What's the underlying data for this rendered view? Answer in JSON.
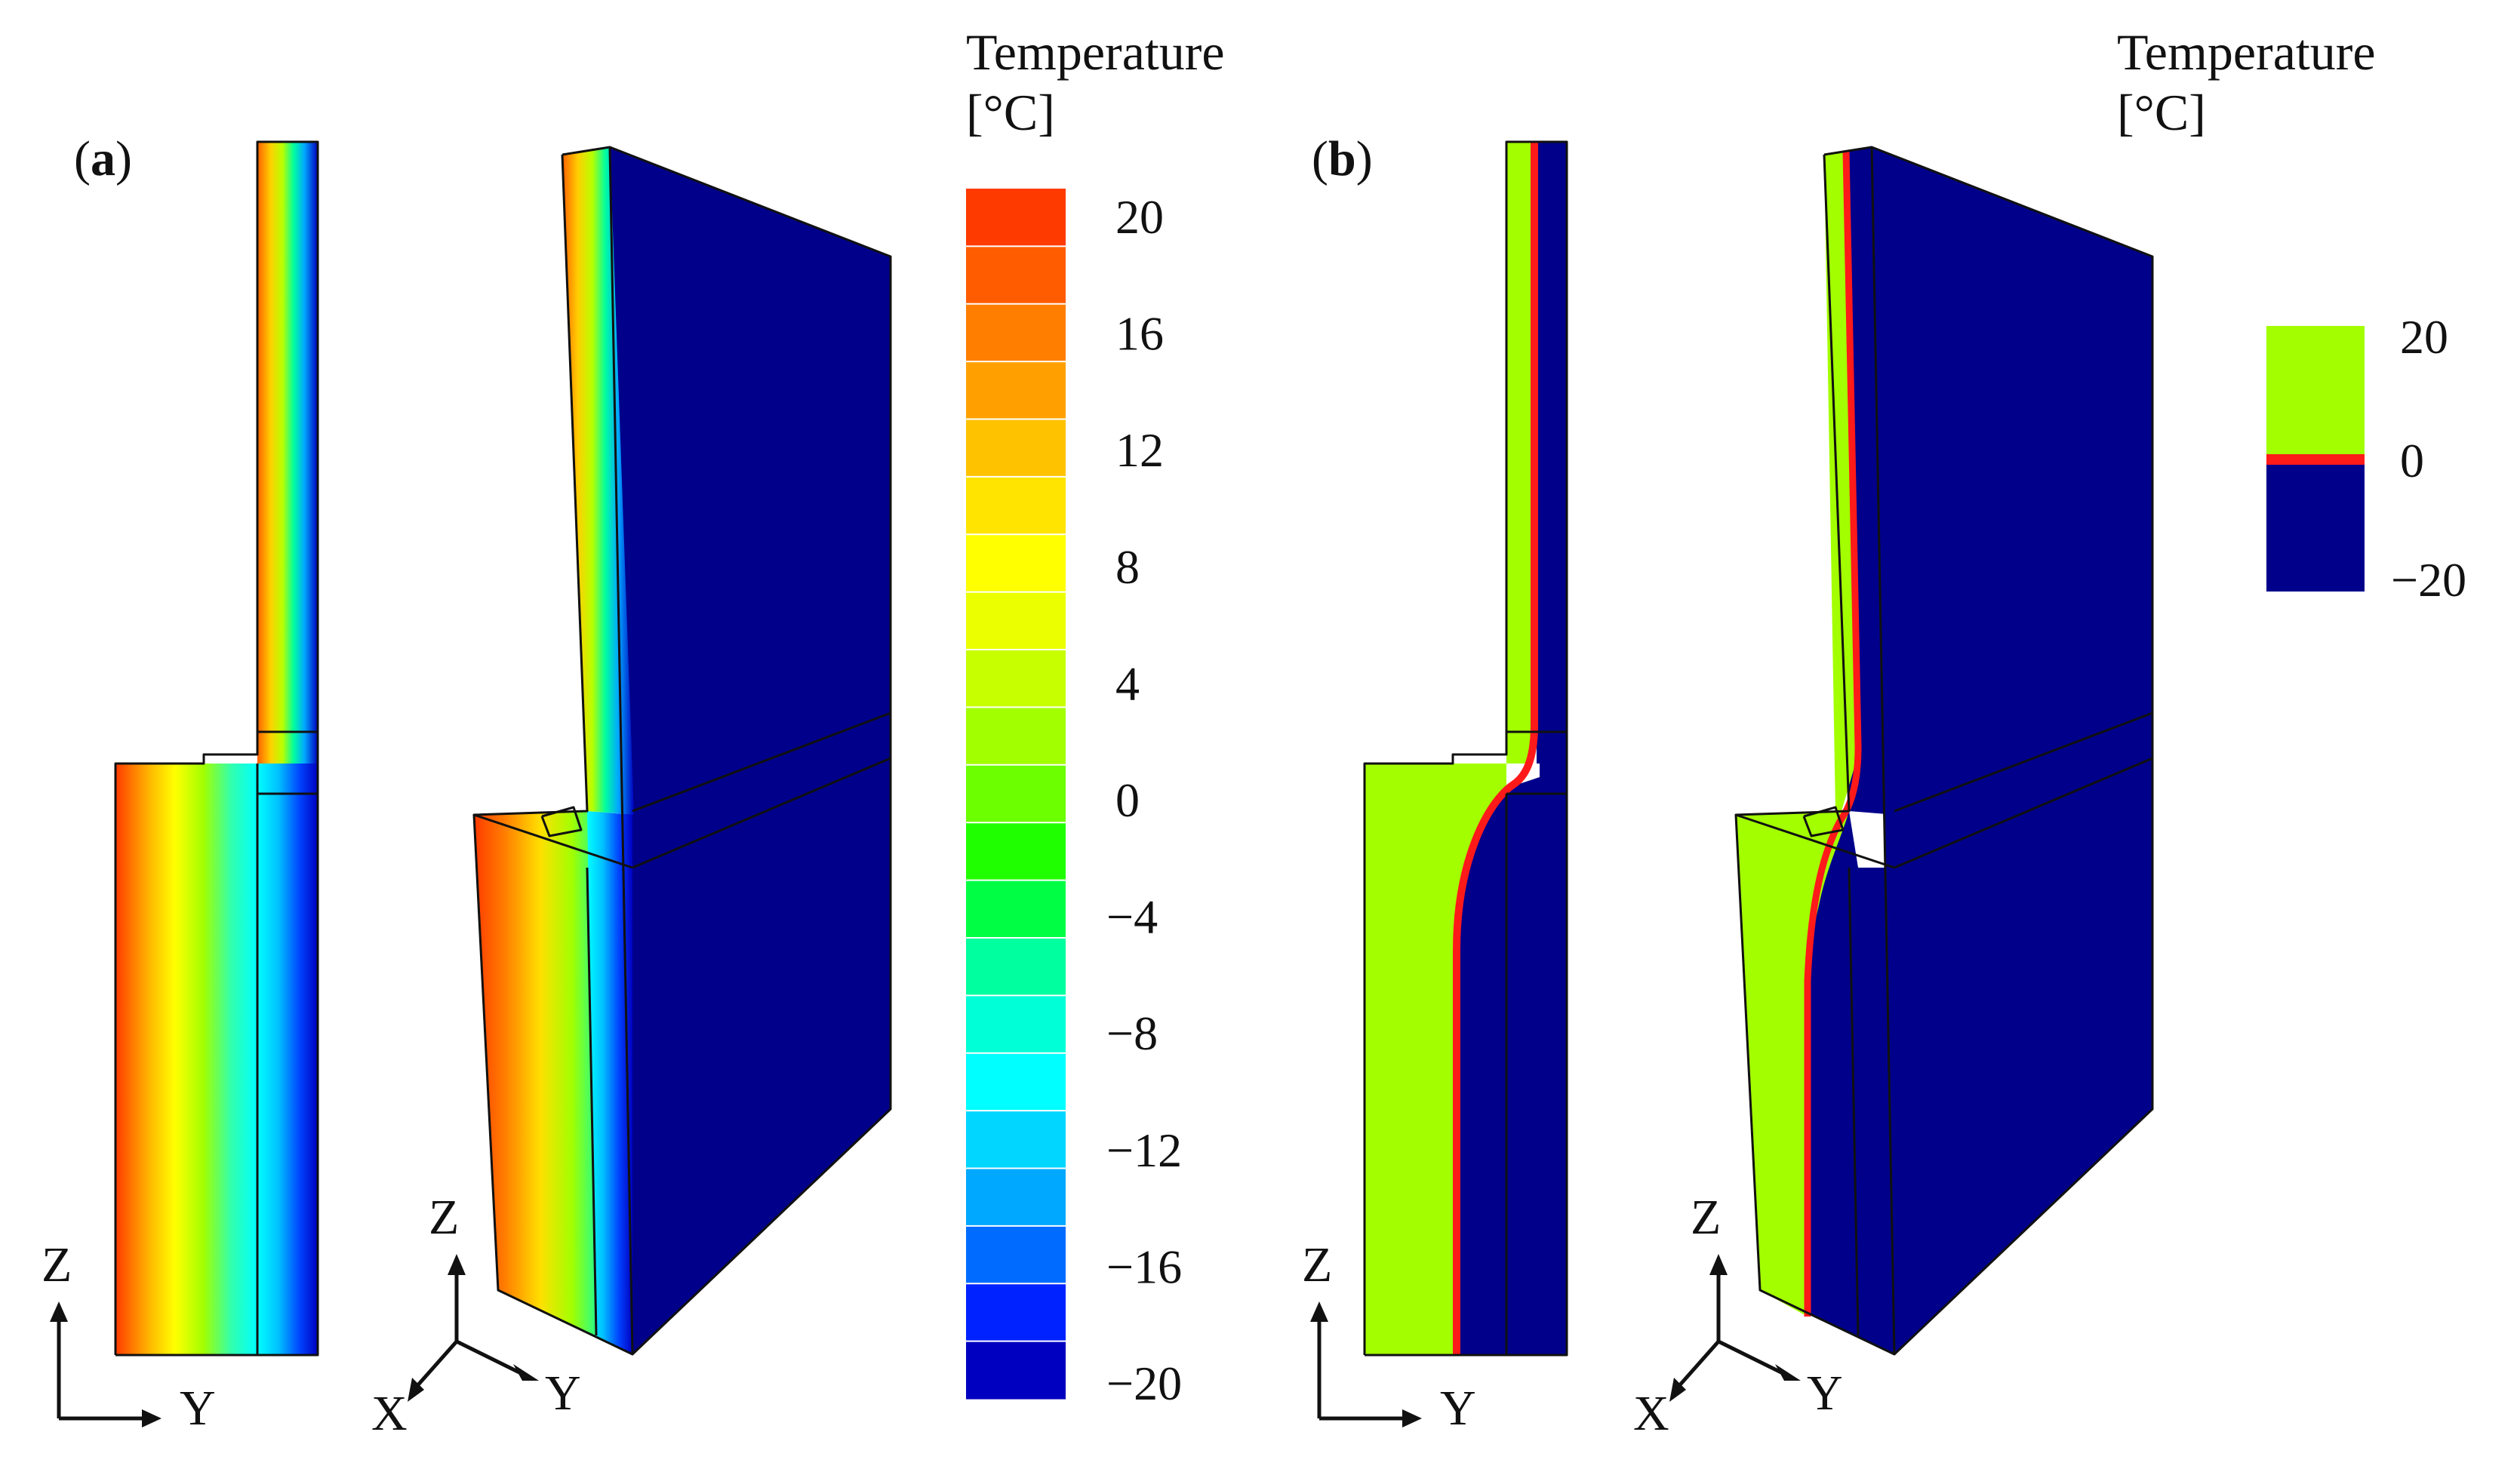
{
  "panel_a": {
    "label_open": "(",
    "label_letter": "a",
    "label_close": ")",
    "legend": {
      "title_line1": "Temperature",
      "title_line2": "[°C]",
      "ticks": [
        "20",
        "16",
        "12",
        "8",
        "4",
        "0",
        "−4",
        "−8",
        "−12",
        "−16",
        "−20"
      ],
      "colors": [
        "#ff3a00",
        "#ff5c00",
        "#ff7e00",
        "#ffa000",
        "#ffc200",
        "#ffe400",
        "#ffff00",
        "#ecff00",
        "#c8ff00",
        "#a2ff00",
        "#6cff00",
        "#20ff00",
        "#00ff44",
        "#00ff9e",
        "#00ffd6",
        "#00ffff",
        "#00d6ff",
        "#00a8ff",
        "#006cff",
        "#0022ff",
        "#0000c0"
      ]
    },
    "axes_2d": {
      "vertical": "Z",
      "horizontal": "Y"
    },
    "axes_3d": {
      "up": "Z",
      "left": "X",
      "right": "Y"
    }
  },
  "panel_b": {
    "label_open": "(",
    "label_letter": "b",
    "label_close": ")",
    "legend": {
      "title_line1": "Temperature",
      "title_line2": "[°C]",
      "ticks": [
        "20",
        "0",
        "−20"
      ],
      "warm_color": "#a3ff00",
      "cold_color": "#00008b",
      "iso_color": "#ff1a1a"
    },
    "axes_2d": {
      "vertical": "Z",
      "horizontal": "Y"
    },
    "axes_3d": {
      "up": "Z",
      "left": "X",
      "right": "Y"
    }
  }
}
